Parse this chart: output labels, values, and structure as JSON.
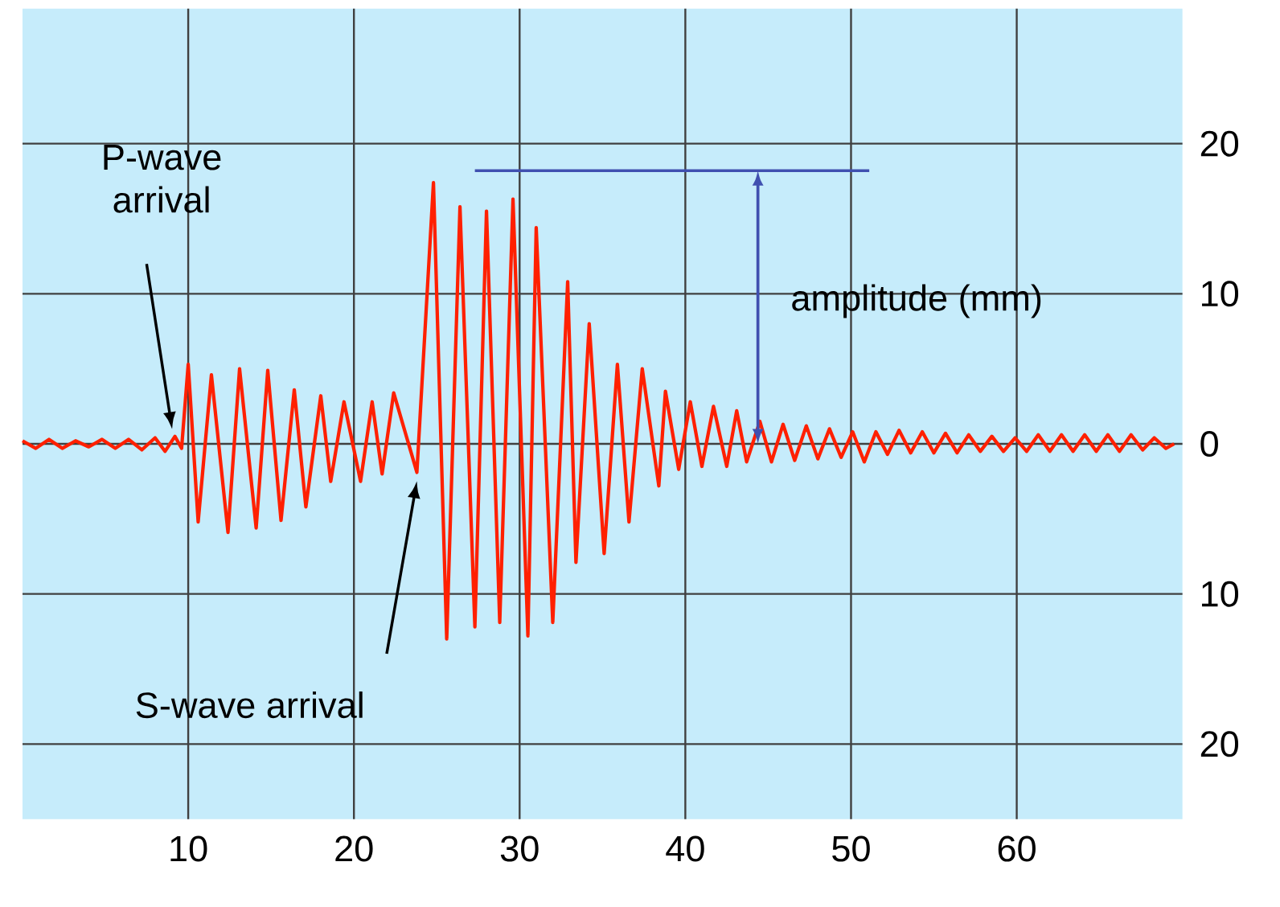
{
  "chart_data": {
    "type": "line",
    "x": [
      0,
      0.8,
      1.6,
      2.4,
      3.2,
      4,
      4.8,
      5.6,
      6.4,
      7.2,
      8,
      8.6,
      9.2,
      9.6,
      10.0,
      10.6,
      11.4,
      12.4,
      13.1,
      14.1,
      14.8,
      15.6,
      16.4,
      17.1,
      18.0,
      18.6,
      19.4,
      20.4,
      21.1,
      21.7,
      22.4,
      23.8,
      24.8,
      25.6,
      26.4,
      27.3,
      28.0,
      28.8,
      29.6,
      30.5,
      31.0,
      32.0,
      32.9,
      33.4,
      34.2,
      35.1,
      35.9,
      36.6,
      37.4,
      38.4,
      38.8,
      39.6,
      40.3,
      41.0,
      41.7,
      42.5,
      43.1,
      43.7,
      44.5,
      45.2,
      45.9,
      46.6,
      47.3,
      48,
      48.7,
      49.4,
      50.1,
      50.8,
      51.5,
      52.2,
      52.9,
      53.6,
      54.3,
      55,
      55.7,
      56.4,
      57.1,
      57.8,
      58.5,
      59.2,
      59.9,
      60.6,
      61.3,
      62,
      62.7,
      63.4,
      64.1,
      64.8,
      65.5,
      66.2,
      66.9,
      67.6,
      68.3,
      69,
      69.5
    ],
    "values": [
      0.2,
      -0.3,
      0.3,
      -0.3,
      0.2,
      -0.2,
      0.3,
      -0.3,
      0.3,
      -0.4,
      0.4,
      -0.5,
      0.5,
      -0.3,
      5.3,
      -5.2,
      4.6,
      -5.9,
      5.0,
      -5.6,
      4.9,
      -5.1,
      3.6,
      -4.2,
      3.2,
      -2.5,
      2.8,
      -2.5,
      2.8,
      -2.0,
      3.4,
      -1.9,
      17.4,
      -13.0,
      15.8,
      -12.2,
      15.5,
      -11.9,
      16.3,
      -12.8,
      14.4,
      -11.9,
      10.8,
      -7.9,
      8.0,
      -7.3,
      5.3,
      -5.2,
      5.0,
      -2.8,
      3.5,
      -1.7,
      2.8,
      -1.5,
      2.5,
      -1.5,
      2.2,
      -1.2,
      1.5,
      -1.2,
      1.3,
      -1.1,
      1.2,
      -1.0,
      1.0,
      -0.9,
      0.8,
      -1.2,
      0.8,
      -0.7,
      0.9,
      -0.6,
      0.8,
      -0.6,
      0.7,
      -0.6,
      0.6,
      -0.5,
      0.5,
      -0.5,
      0.4,
      -0.5,
      0.6,
      -0.5,
      0.6,
      -0.5,
      0.6,
      -0.5,
      0.6,
      -0.5,
      0.6,
      -0.4,
      0.4,
      -0.3,
      0
    ],
    "color": "#ff2000",
    "xlim": [
      0,
      70
    ],
    "ylim": [
      -25,
      29
    ],
    "xticks": [
      10,
      20,
      30,
      40,
      50,
      60
    ],
    "yticks": [
      {
        "value": -20,
        "label": "20"
      },
      {
        "value": -10,
        "label": "10"
      },
      0,
      10,
      20
    ],
    "grid": true,
    "ref_lines": [
      {
        "axis": "y",
        "value": 18.2,
        "color": "#4050b0"
      }
    ],
    "annotations": [
      "P-wave arrival",
      "S-wave arrival",
      "amplitude (mm)"
    ]
  }
}
